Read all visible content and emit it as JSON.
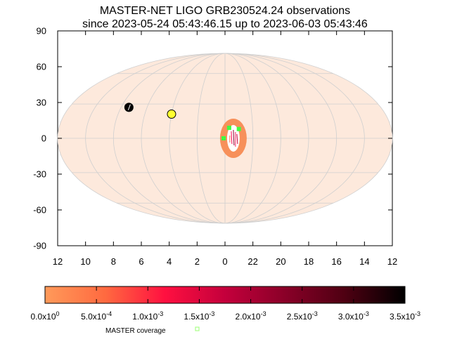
{
  "chart_data": {
    "type": "scatter",
    "projection": "mollweide",
    "title": "MASTER-NET LIGO GRB230524.24 observations",
    "subtitle": "since 2023-05-24 05:43:46.15 up to 2023-06-03 05:43:46",
    "xlabel": "",
    "ylabel": "",
    "x_axis": {
      "ticks": [
        "12",
        "10",
        "8",
        "6",
        "4",
        "2",
        "0",
        "22",
        "20",
        "18",
        "16",
        "14",
        "12"
      ],
      "range_hours": [
        12,
        12
      ],
      "direction": "decreasing RA left to right through 0h"
    },
    "y_axis": {
      "ticks": [
        "90",
        "60",
        "30",
        "0",
        "-30",
        "-60",
        "-90"
      ],
      "range": [
        -90,
        90
      ]
    },
    "grid": true,
    "grid_meridians_hours": [
      10,
      8,
      6,
      4,
      2,
      0,
      22,
      20,
      18,
      16,
      14
    ],
    "grid_parallels_deg": [
      60,
      30,
      0,
      -30,
      -60
    ],
    "sky_color": "#fde9dc",
    "grid_color": "#cfcfcf",
    "colorbar": {
      "ticks": [
        "0.0x10",
        "5.0x10",
        "1.0x10",
        "1.5x10",
        "2.0x10",
        "2.5x10",
        "3.0x10",
        "3.5x10"
      ],
      "tick_exponents": [
        "0",
        "-4",
        "-3",
        "-3",
        "-3",
        "-3",
        "-3",
        "-3"
      ],
      "range": [
        0,
        0.0035
      ],
      "colors": [
        "#ff9a5a",
        "#ff6a40",
        "#ff1040",
        "#c4003c",
        "#8a0028",
        "#4e0012",
        "#000000"
      ]
    },
    "probability_region": {
      "ra_hours_center": 23.4,
      "dec_center": 0,
      "color": "#f7905a"
    },
    "sun": {
      "ra_hours": 4.0,
      "dec": 21,
      "color": "#ffff30"
    },
    "moon": {
      "ra_hours": 7.4,
      "dec": 27,
      "color": "#000000"
    },
    "coverage_points": [
      {
        "ra_hours": 0.1,
        "dec": 0,
        "color": "#40ff40"
      },
      {
        "ra_hours": 23.7,
        "dec": 9,
        "color": "#40ff40"
      },
      {
        "ra_hours": 23.0,
        "dec": 8,
        "color": "#40ff40"
      }
    ],
    "legend": [
      {
        "label": "MASTER coverage",
        "color": "#aaff88",
        "marker": "square"
      }
    ],
    "legend_position": "bottom"
  }
}
